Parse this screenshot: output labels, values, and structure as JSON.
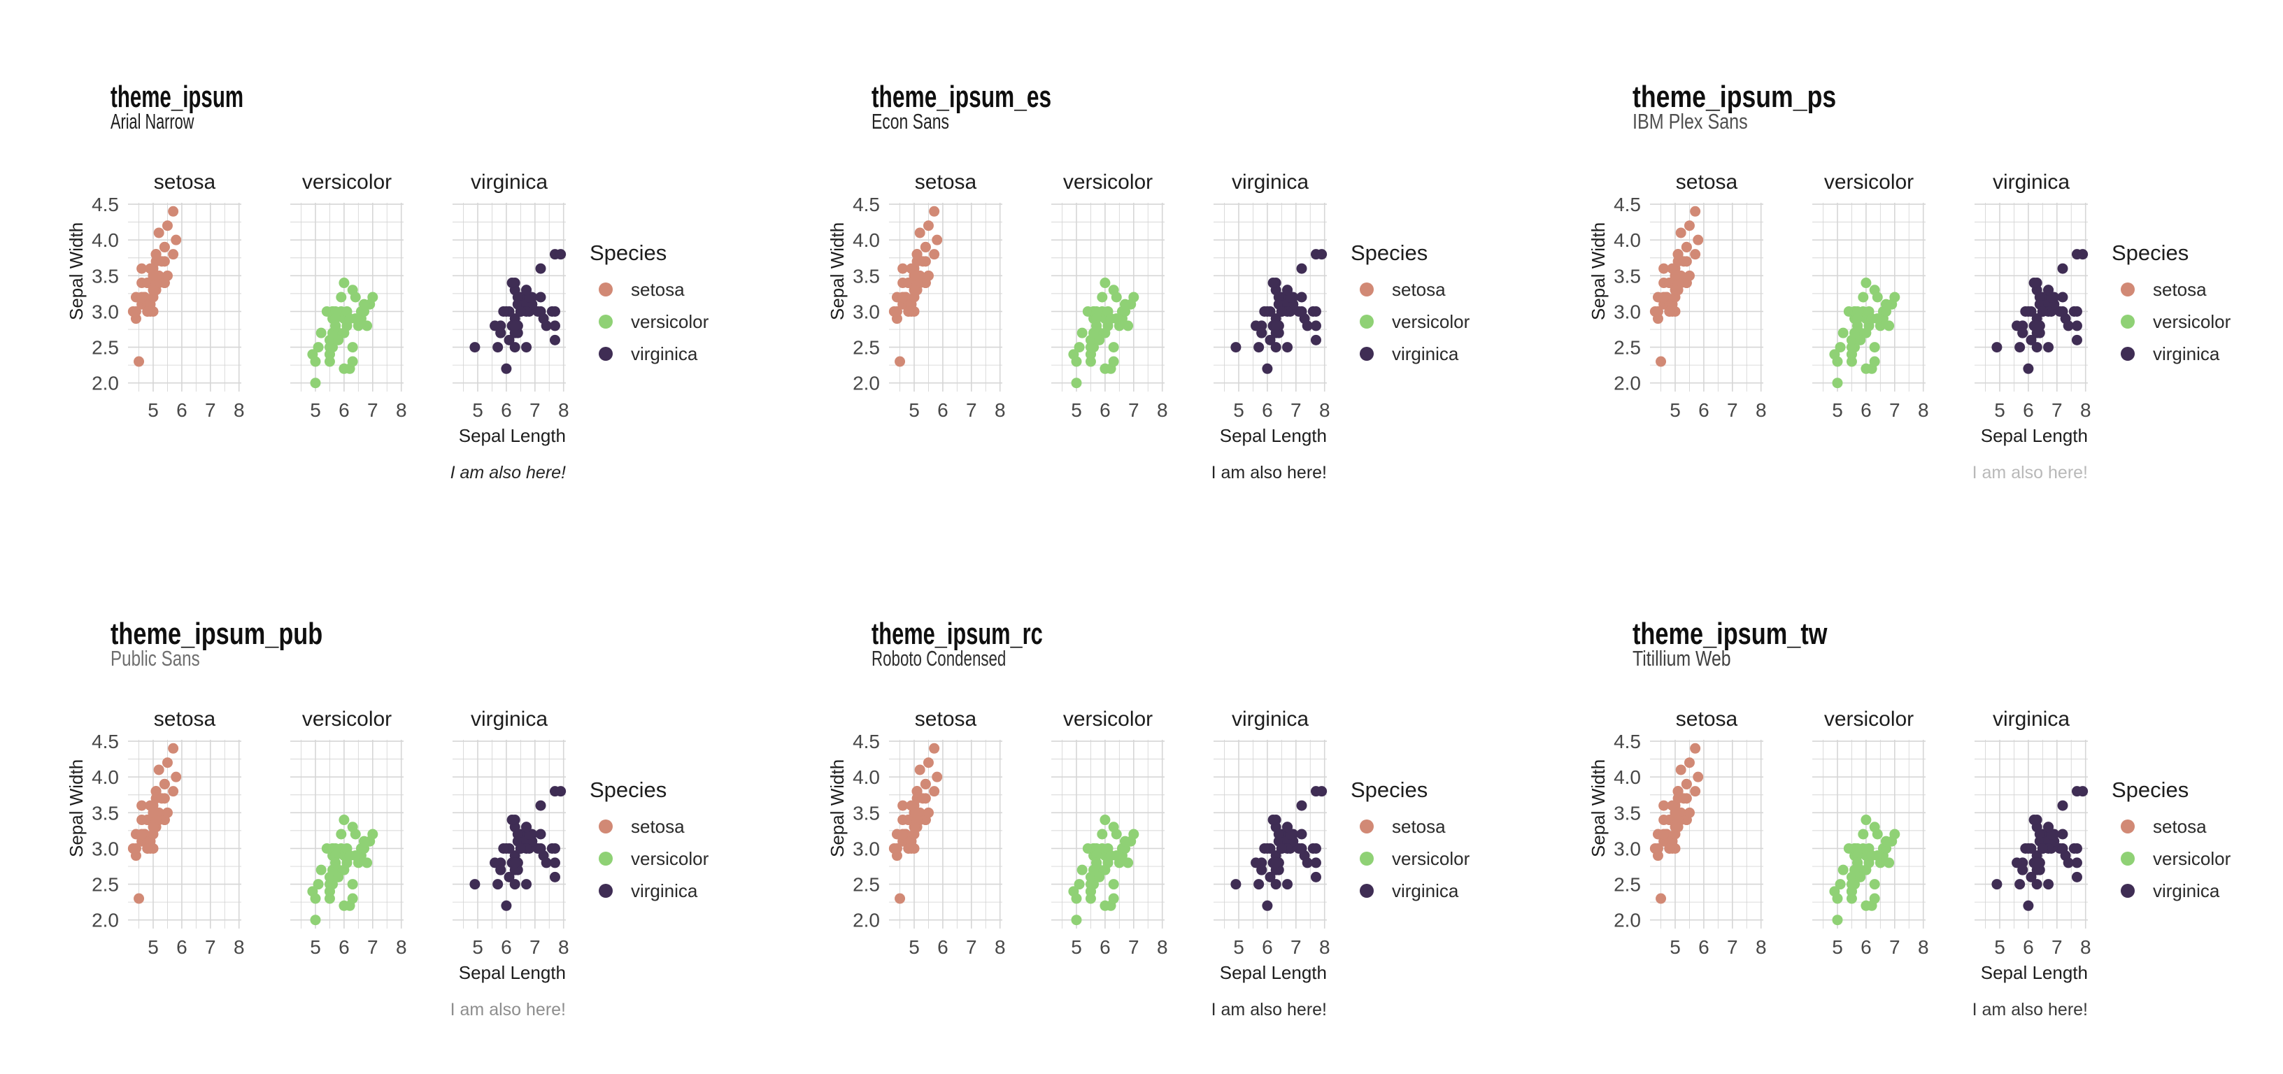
{
  "page": {
    "background": "#ffffff"
  },
  "plots": [
    {
      "title": "theme_ipsum",
      "subtitle": "Arial Narrow",
      "caption": "I am also here!",
      "subtitle_color": "#1c1c1c",
      "caption_color": "#242424",
      "caption_italic": true
    },
    {
      "title": "theme_ipsum_es",
      "subtitle": "Econ Sans",
      "caption": "I am also here!",
      "subtitle_color": "#242424",
      "caption_color": "#242424",
      "caption_italic": false
    },
    {
      "title": "theme_ipsum_ps",
      "subtitle": "IBM Plex Sans",
      "caption": "I am also here!",
      "subtitle_color": "#4f4f4f",
      "caption_color": "#b9b9b9",
      "caption_italic": false
    },
    {
      "title": "theme_ipsum_pub",
      "subtitle": "Public Sans",
      "caption": "I am also here!",
      "subtitle_color": "#6f6f6f",
      "caption_color": "#8e8e8e",
      "caption_italic": false
    },
    {
      "title": "theme_ipsum_rc",
      "subtitle": "Roboto Condensed",
      "caption": "I am also here!",
      "subtitle_color": "#2e2e2e",
      "caption_color": "#2e2e2e",
      "caption_italic": false
    },
    {
      "title": "theme_ipsum_tw",
      "subtitle": "Titillium Web",
      "caption": "I am also here!",
      "subtitle_color": "#3f3f3f",
      "caption_color": "#3a3a3a",
      "caption_italic": false
    }
  ],
  "chart_data": {
    "type": "scatter",
    "title": "facetted iris scatter (repeated in 6 theme variants)",
    "xlabel": "Sepal Length",
    "ylabel": "Sepal Width",
    "legend_title": "Species",
    "legend_position": "right",
    "facets": [
      "setosa",
      "versicolor",
      "virginica"
    ],
    "x_ticks": [
      5,
      6,
      7,
      8
    ],
    "y_ticks": [
      2.0,
      2.5,
      3.0,
      3.5,
      4.0,
      4.5
    ],
    "xlim": [
      4.12,
      8.08
    ],
    "ylim": [
      1.88,
      4.52
    ],
    "x_tick_step": 1,
    "y_tick_step": 0.5,
    "grid": "major+minor",
    "grid_color": "#d6d6d6",
    "text_color": "#1d1d1d",
    "tick_color": "#484848",
    "legend_label_color": "#2a2a2a",
    "series": [
      {
        "name": "setosa",
        "color": "#d18975",
        "points": [
          [
            5.1,
            3.5
          ],
          [
            4.9,
            3.0
          ],
          [
            4.7,
            3.2
          ],
          [
            4.6,
            3.1
          ],
          [
            5.0,
            3.6
          ],
          [
            5.4,
            3.9
          ],
          [
            4.6,
            3.4
          ],
          [
            5.0,
            3.4
          ],
          [
            4.4,
            2.9
          ],
          [
            4.9,
            3.1
          ],
          [
            5.4,
            3.7
          ],
          [
            4.8,
            3.4
          ],
          [
            4.8,
            3.0
          ],
          [
            4.3,
            3.0
          ],
          [
            5.8,
            4.0
          ],
          [
            5.7,
            4.4
          ],
          [
            5.4,
            3.9
          ],
          [
            5.1,
            3.5
          ],
          [
            5.7,
            3.8
          ],
          [
            5.1,
            3.8
          ],
          [
            5.4,
            3.4
          ],
          [
            5.1,
            3.7
          ],
          [
            4.6,
            3.6
          ],
          [
            5.1,
            3.3
          ],
          [
            4.8,
            3.4
          ],
          [
            5.0,
            3.0
          ],
          [
            5.0,
            3.4
          ],
          [
            5.2,
            3.5
          ],
          [
            5.2,
            3.4
          ],
          [
            4.7,
            3.2
          ],
          [
            4.8,
            3.1
          ],
          [
            5.4,
            3.4
          ],
          [
            5.2,
            4.1
          ],
          [
            5.5,
            4.2
          ],
          [
            4.9,
            3.1
          ],
          [
            5.0,
            3.2
          ],
          [
            5.5,
            3.5
          ],
          [
            4.9,
            3.6
          ],
          [
            4.4,
            3.0
          ],
          [
            5.1,
            3.4
          ],
          [
            5.0,
            3.5
          ],
          [
            4.5,
            2.3
          ],
          [
            4.4,
            3.2
          ],
          [
            5.0,
            3.5
          ],
          [
            5.1,
            3.8
          ],
          [
            4.8,
            3.0
          ],
          [
            5.1,
            3.8
          ],
          [
            4.6,
            3.2
          ],
          [
            5.3,
            3.7
          ],
          [
            5.0,
            3.3
          ]
        ]
      },
      {
        "name": "versicolor",
        "color": "#8fd175",
        "points": [
          [
            7.0,
            3.2
          ],
          [
            6.4,
            3.2
          ],
          [
            6.9,
            3.1
          ],
          [
            5.5,
            2.3
          ],
          [
            6.5,
            2.8
          ],
          [
            5.7,
            2.8
          ],
          [
            6.3,
            3.3
          ],
          [
            4.9,
            2.4
          ],
          [
            6.6,
            2.9
          ],
          [
            5.2,
            2.7
          ],
          [
            5.0,
            2.0
          ],
          [
            5.9,
            3.0
          ],
          [
            6.0,
            2.2
          ],
          [
            6.1,
            2.9
          ],
          [
            5.6,
            2.9
          ],
          [
            6.7,
            3.1
          ],
          [
            5.6,
            3.0
          ],
          [
            5.8,
            2.7
          ],
          [
            6.2,
            2.2
          ],
          [
            5.6,
            2.5
          ],
          [
            5.9,
            3.2
          ],
          [
            6.1,
            2.8
          ],
          [
            6.3,
            2.5
          ],
          [
            6.1,
            2.8
          ],
          [
            6.4,
            2.9
          ],
          [
            6.6,
            3.0
          ],
          [
            6.8,
            2.8
          ],
          [
            6.7,
            3.0
          ],
          [
            6.0,
            2.9
          ],
          [
            5.7,
            2.6
          ],
          [
            5.5,
            2.4
          ],
          [
            5.5,
            2.4
          ],
          [
            5.8,
            2.7
          ],
          [
            6.0,
            2.7
          ],
          [
            5.4,
            3.0
          ],
          [
            6.0,
            3.4
          ],
          [
            6.7,
            3.1
          ],
          [
            6.3,
            2.3
          ],
          [
            5.6,
            3.0
          ],
          [
            5.5,
            2.5
          ],
          [
            5.5,
            2.6
          ],
          [
            6.1,
            3.0
          ],
          [
            5.8,
            2.6
          ],
          [
            5.0,
            2.3
          ],
          [
            5.6,
            2.7
          ],
          [
            5.7,
            3.0
          ],
          [
            5.7,
            2.9
          ],
          [
            6.2,
            2.9
          ],
          [
            5.1,
            2.5
          ],
          [
            5.7,
            2.8
          ]
        ]
      },
      {
        "name": "virginica",
        "color": "#3f2d54",
        "points": [
          [
            6.3,
            3.3
          ],
          [
            5.8,
            2.7
          ],
          [
            7.1,
            3.0
          ],
          [
            6.3,
            2.9
          ],
          [
            6.5,
            3.0
          ],
          [
            7.6,
            3.0
          ],
          [
            4.9,
            2.5
          ],
          [
            7.3,
            2.9
          ],
          [
            6.7,
            2.5
          ],
          [
            7.2,
            3.6
          ],
          [
            6.5,
            3.2
          ],
          [
            6.4,
            2.7
          ],
          [
            6.8,
            3.0
          ],
          [
            5.7,
            2.5
          ],
          [
            5.8,
            2.8
          ],
          [
            6.4,
            3.2
          ],
          [
            6.5,
            3.0
          ],
          [
            7.7,
            3.8
          ],
          [
            7.7,
            2.6
          ],
          [
            6.0,
            2.2
          ],
          [
            6.9,
            3.2
          ],
          [
            5.6,
            2.8
          ],
          [
            7.7,
            2.8
          ],
          [
            6.3,
            2.7
          ],
          [
            6.7,
            3.3
          ],
          [
            7.2,
            3.2
          ],
          [
            6.2,
            2.8
          ],
          [
            6.1,
            3.0
          ],
          [
            6.4,
            2.8
          ],
          [
            7.2,
            3.0
          ],
          [
            7.4,
            2.8
          ],
          [
            7.9,
            3.8
          ],
          [
            6.4,
            2.8
          ],
          [
            6.3,
            2.8
          ],
          [
            6.1,
            2.6
          ],
          [
            7.7,
            3.0
          ],
          [
            6.3,
            3.4
          ],
          [
            6.4,
            3.1
          ],
          [
            6.0,
            3.0
          ],
          [
            6.9,
            3.1
          ],
          [
            6.7,
            3.1
          ],
          [
            6.9,
            3.1
          ],
          [
            5.8,
            2.7
          ],
          [
            6.8,
            3.2
          ],
          [
            6.7,
            3.3
          ],
          [
            6.7,
            3.0
          ],
          [
            6.3,
            2.5
          ],
          [
            6.5,
            3.0
          ],
          [
            6.2,
            3.4
          ],
          [
            5.9,
            3.0
          ]
        ]
      }
    ]
  }
}
